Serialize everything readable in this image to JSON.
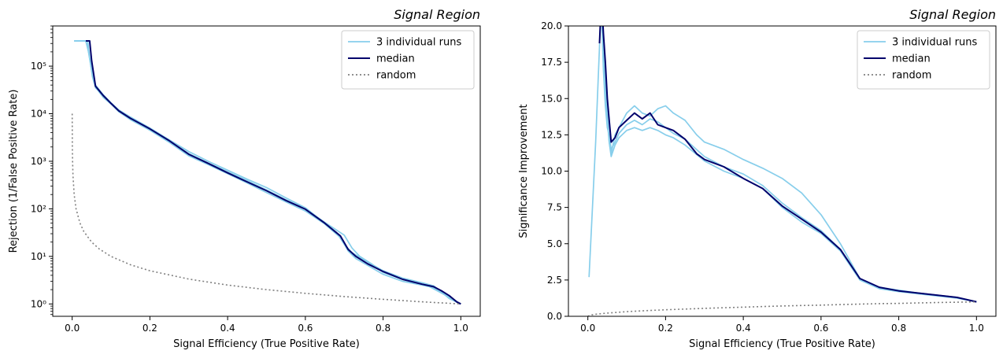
{
  "chart_data": [
    {
      "type": "line",
      "title": "Signal Region",
      "xlabel": "Signal Efficiency (True Positive Rate)",
      "ylabel": "Rejection (1/False Positive Rate)",
      "yscale": "log",
      "xlim": [
        -0.05,
        1.05
      ],
      "ylim": [
        0.55,
        700000
      ],
      "xticks": [
        0.0,
        0.2,
        0.4,
        0.6,
        0.8,
        1.0
      ],
      "xtick_labels": [
        "0.0",
        "0.2",
        "0.4",
        "0.6",
        "0.8",
        "1.0"
      ],
      "yticks": [
        1,
        10,
        100,
        1000,
        10000,
        100000
      ],
      "ytick_labels": [
        "10⁰",
        "10¹",
        "10²",
        "10³",
        "10⁴",
        "10⁵"
      ],
      "grid": false,
      "legend_position": "top-right",
      "legend": [
        "3 individual runs",
        "median",
        "random"
      ],
      "series": [
        {
          "name": "3 individual runs",
          "color": "#87ceeb",
          "style": "solid",
          "x": [
            0.005,
            0.035,
            0.04,
            0.045,
            0.05,
            0.06,
            0.08,
            0.1,
            0.12,
            0.15,
            0.2,
            0.25,
            0.3,
            0.35,
            0.4,
            0.45,
            0.5,
            0.55,
            0.6,
            0.65,
            0.68,
            0.7,
            0.72,
            0.75,
            0.8,
            0.85,
            0.9,
            0.93,
            0.95,
            0.97,
            1.0
          ],
          "y": [
            340000,
            340000,
            340000,
            150000,
            80000,
            40000,
            25000,
            17000,
            12000,
            8500,
            5000,
            2800,
            1600,
            1000,
            650,
            420,
            280,
            170,
            105,
            50,
            32,
            18,
            12,
            8.5,
            5,
            3.5,
            2.8,
            2.4,
            1.8,
            1.3,
            1.0
          ]
        },
        {
          "name": "3 individual runs",
          "color": "#87ceeb",
          "style": "solid",
          "x": [
            0.005,
            0.035,
            0.042,
            0.048,
            0.055,
            0.065,
            0.08,
            0.1,
            0.12,
            0.15,
            0.2,
            0.25,
            0.3,
            0.35,
            0.4,
            0.45,
            0.5,
            0.55,
            0.6,
            0.65,
            0.69,
            0.71,
            0.73,
            0.76,
            0.8,
            0.85,
            0.9,
            0.93,
            0.96,
            0.98,
            1.0
          ],
          "y": [
            340000,
            340000,
            200000,
            100000,
            50000,
            32000,
            22000,
            16000,
            11000,
            7500,
            4500,
            2500,
            1300,
            850,
            550,
            350,
            220,
            140,
            90,
            48,
            25,
            13,
            9,
            6.5,
            4.2,
            3.0,
            2.5,
            2.2,
            1.6,
            1.2,
            1.0
          ]
        },
        {
          "name": "3 individual runs",
          "color": "#87ceeb",
          "style": "solid",
          "x": [
            0.005,
            0.035,
            0.04,
            0.047,
            0.052,
            0.06,
            0.08,
            0.1,
            0.12,
            0.15,
            0.2,
            0.25,
            0.3,
            0.35,
            0.4,
            0.45,
            0.5,
            0.55,
            0.6,
            0.65,
            0.7,
            0.72,
            0.74,
            0.77,
            0.8,
            0.85,
            0.9,
            0.92,
            0.95,
            0.98,
            1.0
          ],
          "y": [
            340000,
            340000,
            250000,
            120000,
            60000,
            35000,
            24000,
            16500,
            11500,
            8000,
            4800,
            2700,
            1450,
            920,
            600,
            390,
            250,
            155,
            100,
            52,
            28,
            15,
            10,
            7,
            4.6,
            3.3,
            2.6,
            2.3,
            1.7,
            1.25,
            1.0
          ]
        },
        {
          "name": "median",
          "color": "#00006b",
          "style": "solid",
          "x": [
            0.035,
            0.04,
            0.045,
            0.05,
            0.06,
            0.08,
            0.1,
            0.12,
            0.15,
            0.2,
            0.25,
            0.3,
            0.35,
            0.4,
            0.45,
            0.5,
            0.55,
            0.6,
            0.65,
            0.69,
            0.71,
            0.73,
            0.76,
            0.8,
            0.85,
            0.9,
            0.93,
            0.95,
            0.97,
            0.99,
            1.0
          ],
          "y": [
            340000,
            340000,
            340000,
            130000,
            38000,
            24000,
            16500,
            11500,
            8000,
            4800,
            2700,
            1400,
            900,
            570,
            370,
            240,
            150,
            98,
            50,
            27,
            14,
            10,
            7,
            4.8,
            3.3,
            2.6,
            2.3,
            1.9,
            1.5,
            1.1,
            1.0
          ]
        },
        {
          "name": "random",
          "color": "#808080",
          "style": "dotted",
          "x": [
            0.0001,
            0.0002,
            0.0005,
            0.001,
            0.002,
            0.005,
            0.01,
            0.02,
            0.03,
            0.05,
            0.07,
            0.1,
            0.15,
            0.2,
            0.3,
            0.4,
            0.5,
            0.6,
            0.7,
            0.8,
            0.9,
            1.0
          ],
          "y": [
            10000,
            5000,
            2000,
            1000,
            500,
            200,
            100,
            50,
            33.3,
            20,
            14.3,
            10,
            6.67,
            5,
            3.33,
            2.5,
            2,
            1.67,
            1.43,
            1.25,
            1.11,
            1.0
          ]
        }
      ]
    },
    {
      "type": "line",
      "title": "Signal Region",
      "xlabel": "Signal Efficiency (True Positive Rate)",
      "ylabel": "Significance Improvement",
      "yscale": "linear",
      "xlim": [
        -0.05,
        1.05
      ],
      "ylim": [
        0,
        20
      ],
      "xticks": [
        0.0,
        0.2,
        0.4,
        0.6,
        0.8,
        1.0
      ],
      "xtick_labels": [
        "0.0",
        "0.2",
        "0.4",
        "0.6",
        "0.8",
        "1.0"
      ],
      "yticks": [
        0,
        2.5,
        5,
        7.5,
        10,
        12.5,
        15,
        17.5,
        20
      ],
      "ytick_labels": [
        "0.0",
        "2.5",
        "5.0",
        "7.5",
        "10.0",
        "12.5",
        "15.0",
        "17.5",
        "20.0"
      ],
      "grid": false,
      "legend_position": "top-right",
      "legend": [
        "3 individual runs",
        "median",
        "random"
      ],
      "series": [
        {
          "name": "3 individual runs",
          "color": "#87ceeb",
          "style": "solid",
          "x": [
            0.003,
            0.02,
            0.035,
            0.04,
            0.045,
            0.05,
            0.055,
            0.06,
            0.07,
            0.08,
            0.09,
            0.1,
            0.12,
            0.14,
            0.16,
            0.18,
            0.2,
            0.22,
            0.25,
            0.28,
            0.3,
            0.35,
            0.4,
            0.45,
            0.5,
            0.55,
            0.6,
            0.65,
            0.7,
            0.75,
            0.8,
            0.85,
            0.9,
            0.95,
            1.0
          ],
          "y": [
            2.7,
            12.0,
            22.0,
            18.0,
            16.5,
            14.0,
            12.0,
            11.2,
            12.5,
            13.0,
            13.5,
            14.0,
            14.5,
            14.0,
            13.8,
            14.3,
            14.5,
            14.0,
            13.5,
            12.5,
            12.0,
            11.5,
            10.8,
            10.2,
            9.5,
            8.5,
            7.0,
            5.0,
            2.6,
            2.0,
            1.8,
            1.6,
            1.45,
            1.3,
            1.0
          ]
        },
        {
          "name": "3 individual runs",
          "color": "#87ceeb",
          "style": "solid",
          "x": [
            0.035,
            0.04,
            0.045,
            0.05,
            0.055,
            0.06,
            0.07,
            0.08,
            0.1,
            0.12,
            0.14,
            0.16,
            0.18,
            0.2,
            0.22,
            0.25,
            0.3,
            0.35,
            0.4,
            0.45,
            0.5,
            0.55,
            0.6,
            0.65,
            0.7,
            0.75,
            0.8,
            0.85,
            0.9,
            0.95,
            1.0
          ],
          "y": [
            22.0,
            19.0,
            15.0,
            13.5,
            12.0,
            11.0,
            11.8,
            12.3,
            12.8,
            13.0,
            12.8,
            13.0,
            12.8,
            12.5,
            12.3,
            11.8,
            10.7,
            10.0,
            9.5,
            8.8,
            7.5,
            6.5,
            5.7,
            4.5,
            2.5,
            1.9,
            1.7,
            1.55,
            1.4,
            1.25,
            1.0
          ]
        },
        {
          "name": "3 individual runs",
          "color": "#87ceeb",
          "style": "solid",
          "x": [
            0.035,
            0.04,
            0.045,
            0.05,
            0.055,
            0.06,
            0.07,
            0.08,
            0.1,
            0.12,
            0.14,
            0.16,
            0.18,
            0.2,
            0.22,
            0.25,
            0.3,
            0.35,
            0.4,
            0.45,
            0.5,
            0.55,
            0.6,
            0.65,
            0.7,
            0.75,
            0.8,
            0.85,
            0.9,
            0.95,
            1.0
          ],
          "y": [
            21.0,
            17.0,
            14.5,
            13.0,
            12.5,
            11.5,
            12.0,
            12.6,
            13.2,
            13.5,
            13.2,
            13.6,
            13.4,
            13.0,
            12.6,
            12.2,
            11.0,
            10.3,
            9.8,
            9.0,
            7.8,
            6.8,
            5.9,
            4.6,
            2.6,
            2.0,
            1.75,
            1.6,
            1.45,
            1.3,
            1.0
          ]
        },
        {
          "name": "median",
          "color": "#00006b",
          "style": "solid",
          "x": [
            0.03,
            0.035,
            0.04,
            0.045,
            0.05,
            0.055,
            0.06,
            0.07,
            0.08,
            0.1,
            0.12,
            0.14,
            0.16,
            0.18,
            0.2,
            0.22,
            0.25,
            0.28,
            0.3,
            0.35,
            0.4,
            0.45,
            0.5,
            0.55,
            0.6,
            0.65,
            0.7,
            0.75,
            0.8,
            0.85,
            0.9,
            0.95,
            1.0
          ],
          "y": [
            18.8,
            22.0,
            19.5,
            17.5,
            15.0,
            13.5,
            12.0,
            12.3,
            13.0,
            13.5,
            14.0,
            13.6,
            14.0,
            13.2,
            13.0,
            12.8,
            12.2,
            11.2,
            10.8,
            10.3,
            9.5,
            8.8,
            7.6,
            6.7,
            5.8,
            4.6,
            2.6,
            2.0,
            1.75,
            1.6,
            1.45,
            1.3,
            1.0
          ]
        },
        {
          "name": "random",
          "color": "#808080",
          "style": "dotted",
          "x": [
            0.0,
            0.01,
            0.02,
            0.05,
            0.1,
            0.15,
            0.2,
            0.25,
            0.3,
            0.35,
            0.4,
            0.45,
            0.5,
            0.55,
            0.6,
            0.65,
            0.7,
            0.75,
            0.8,
            0.85,
            0.9,
            0.95,
            1.0
          ],
          "y": [
            0.0,
            0.1,
            0.14,
            0.22,
            0.32,
            0.39,
            0.45,
            0.5,
            0.55,
            0.59,
            0.63,
            0.67,
            0.71,
            0.74,
            0.77,
            0.81,
            0.84,
            0.87,
            0.89,
            0.92,
            0.95,
            0.97,
            1.0
          ]
        }
      ]
    }
  ]
}
